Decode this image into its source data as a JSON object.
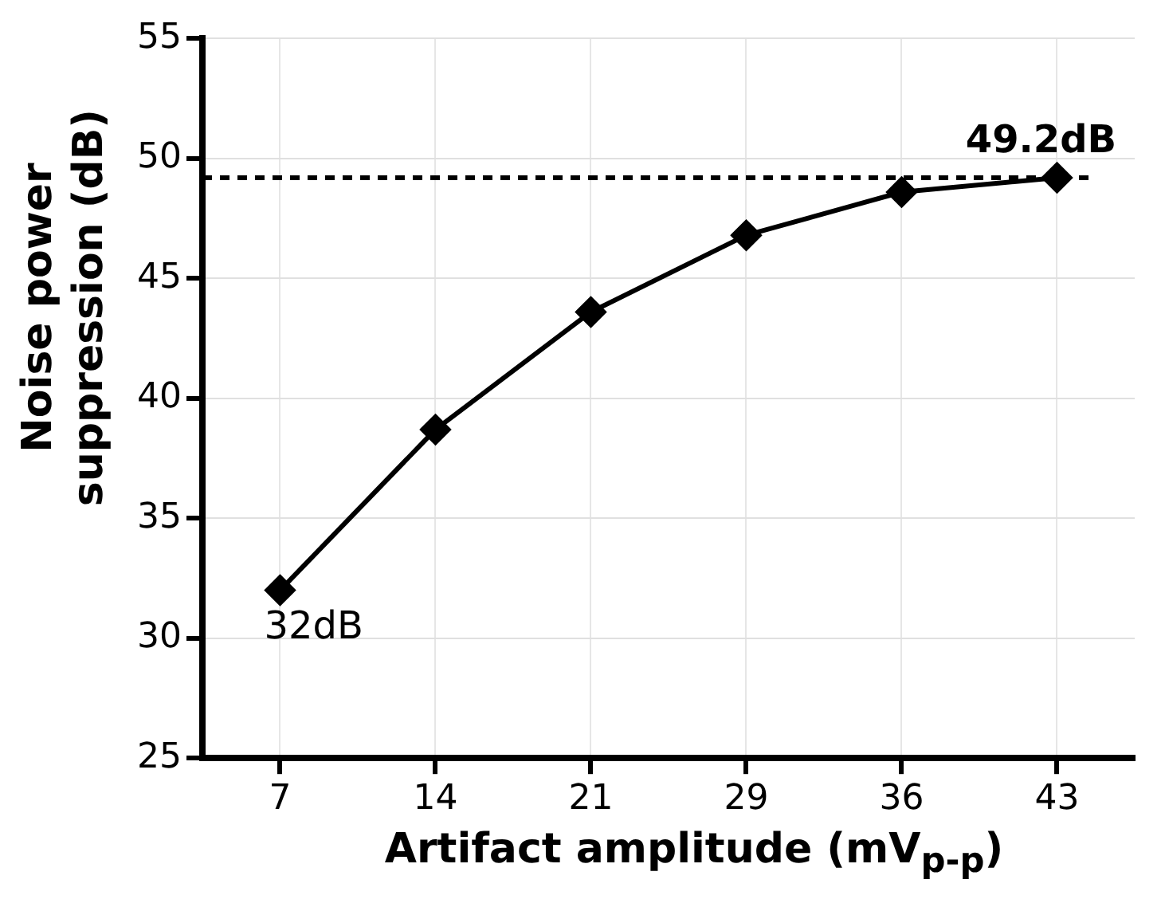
{
  "chart_data": {
    "type": "line",
    "xlabel": "Artifact amplitude (mV$_{p-p}$)",
    "ylabel": "Noise power suppression (dB)",
    "categories": [
      "7",
      "14",
      "21",
      "29",
      "36",
      "43"
    ],
    "series": [
      {
        "color": "#000000",
        "values": [
          32,
          38.7,
          43.6,
          46.8,
          48.6,
          49.2
        ]
      }
    ],
    "ylim": [
      25,
      55
    ],
    "yticks": [
      25,
      30,
      35,
      40,
      45,
      50,
      55
    ],
    "grid": true,
    "legend": false,
    "marker": "diamond",
    "line_style": "solid",
    "ref_lines": [
      {
        "axis": "y",
        "value": 49.2,
        "line_style": "dashed",
        "color": "#000000"
      }
    ],
    "annotations": [
      {
        "text": "32dB",
        "x": "7",
        "y": 32
      },
      {
        "text": "49.2dB",
        "x": "43",
        "y": 49.2
      }
    ]
  }
}
